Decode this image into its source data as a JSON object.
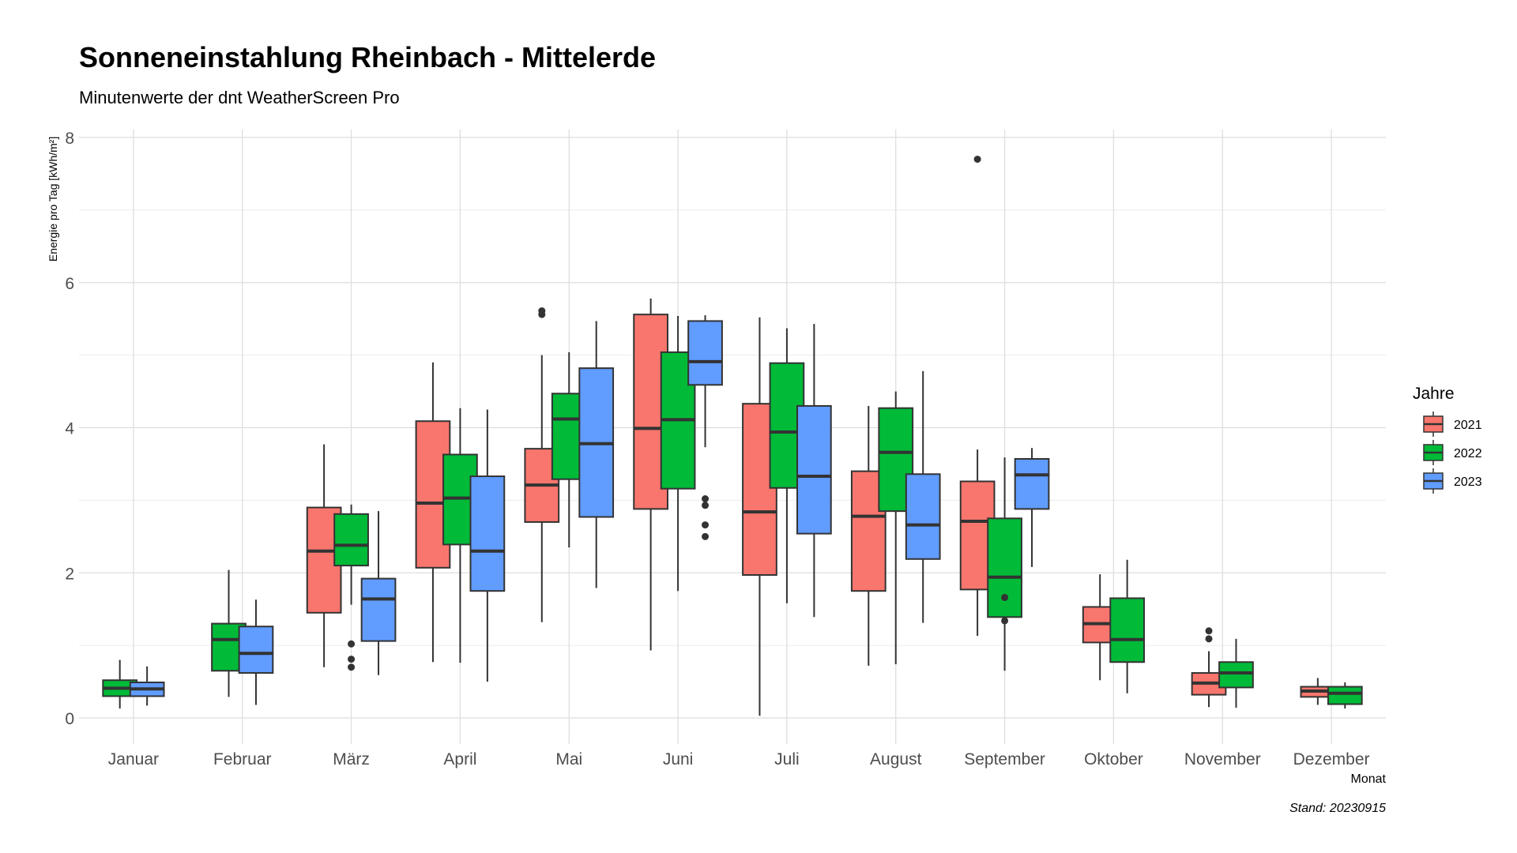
{
  "chart_data": {
    "type": "boxplot",
    "title": "Sonneneinstahlung Rheinbach - Mittelerde",
    "subtitle": "Minutenwerte der dnt WeatherScreen Pro",
    "xlabel": "Monat",
    "ylabel": "Energie pro Tag [kWh/m²]",
    "caption": "Stand: 20230915",
    "ylim": [
      -0.3,
      8.05
    ],
    "yticks": [
      0,
      2,
      4,
      6,
      8
    ],
    "grid": true,
    "legend": {
      "title": "Jahre",
      "position": "right"
    },
    "categories": [
      "Januar",
      "Februar",
      "März",
      "April",
      "Mai",
      "Juni",
      "Juli",
      "August",
      "September",
      "Oktober",
      "November",
      "Dezember"
    ],
    "series": [
      {
        "name": "2021",
        "color": "#F8766D",
        "boxes": [
          {
            "category": "März",
            "whisker_low": 0.7,
            "q1": 1.45,
            "median": 2.3,
            "q3": 2.9,
            "whisker_high": 3.77,
            "outliers": []
          },
          {
            "category": "April",
            "whisker_low": 0.77,
            "q1": 2.07,
            "median": 2.96,
            "q3": 4.09,
            "whisker_high": 4.9,
            "outliers": []
          },
          {
            "category": "Mai",
            "whisker_low": 1.32,
            "q1": 2.7,
            "median": 3.21,
            "q3": 3.71,
            "whisker_high": 5.0,
            "outliers": [
              5.56,
              5.61
            ]
          },
          {
            "category": "Juni",
            "whisker_low": 0.93,
            "q1": 2.88,
            "median": 3.99,
            "q3": 5.56,
            "whisker_high": 5.78,
            "outliers": []
          },
          {
            "category": "Juli",
            "whisker_low": 0.03,
            "q1": 1.97,
            "median": 2.84,
            "q3": 4.33,
            "whisker_high": 5.52,
            "outliers": []
          },
          {
            "category": "August",
            "whisker_low": 0.72,
            "q1": 1.75,
            "median": 2.78,
            "q3": 3.4,
            "whisker_high": 4.3,
            "outliers": []
          },
          {
            "category": "September",
            "whisker_low": 1.13,
            "q1": 1.77,
            "median": 2.71,
            "q3": 3.26,
            "whisker_high": 3.7,
            "outliers": [
              7.7
            ]
          },
          {
            "category": "Oktober",
            "whisker_low": 0.52,
            "q1": 1.04,
            "median": 1.3,
            "q3": 1.53,
            "whisker_high": 1.98,
            "outliers": []
          },
          {
            "category": "November",
            "whisker_low": 0.15,
            "q1": 0.32,
            "median": 0.48,
            "q3": 0.62,
            "whisker_high": 0.92,
            "outliers": [
              1.09,
              1.2
            ]
          },
          {
            "category": "Dezember",
            "whisker_low": 0.18,
            "q1": 0.29,
            "median": 0.37,
            "q3": 0.43,
            "whisker_high": 0.55,
            "outliers": []
          }
        ]
      },
      {
        "name": "2022",
        "color": "#00BA38",
        "boxes": [
          {
            "category": "Januar",
            "whisker_low": 0.13,
            "q1": 0.3,
            "median": 0.41,
            "q3": 0.52,
            "whisker_high": 0.8,
            "outliers": []
          },
          {
            "category": "Februar",
            "whisker_low": 0.29,
            "q1": 0.65,
            "median": 1.08,
            "q3": 1.3,
            "whisker_high": 2.04,
            "outliers": []
          },
          {
            "category": "März",
            "whisker_low": 1.56,
            "q1": 2.1,
            "median": 2.38,
            "q3": 2.81,
            "whisker_high": 2.94,
            "outliers": [
              0.7,
              0.81,
              1.02
            ]
          },
          {
            "category": "April",
            "whisker_low": 0.76,
            "q1": 2.39,
            "median": 3.03,
            "q3": 3.63,
            "whisker_high": 4.27,
            "outliers": []
          },
          {
            "category": "Mai",
            "whisker_low": 2.35,
            "q1": 3.29,
            "median": 4.12,
            "q3": 4.47,
            "whisker_high": 5.04,
            "outliers": []
          },
          {
            "category": "Juni",
            "whisker_low": 1.75,
            "q1": 3.16,
            "median": 4.11,
            "q3": 5.04,
            "whisker_high": 5.54,
            "outliers": []
          },
          {
            "category": "Juli",
            "whisker_low": 1.58,
            "q1": 3.17,
            "median": 3.94,
            "q3": 4.89,
            "whisker_high": 5.37,
            "outliers": []
          },
          {
            "category": "August",
            "whisker_low": 0.74,
            "q1": 2.85,
            "median": 3.66,
            "q3": 4.27,
            "whisker_high": 4.5,
            "outliers": []
          },
          {
            "category": "September",
            "whisker_low": 0.65,
            "q1": 1.39,
            "median": 1.94,
            "q3": 2.75,
            "whisker_high": 3.59,
            "outliers": [
              1.34,
              1.66
            ]
          },
          {
            "category": "Oktober",
            "whisker_low": 0.34,
            "q1": 0.77,
            "median": 1.08,
            "q3": 1.65,
            "whisker_high": 2.18,
            "outliers": []
          },
          {
            "category": "November",
            "whisker_low": 0.14,
            "q1": 0.42,
            "median": 0.62,
            "q3": 0.77,
            "whisker_high": 1.09,
            "outliers": []
          },
          {
            "category": "Dezember",
            "whisker_low": 0.13,
            "q1": 0.19,
            "median": 0.34,
            "q3": 0.43,
            "whisker_high": 0.49,
            "outliers": []
          }
        ]
      },
      {
        "name": "2023",
        "color": "#619CFF",
        "boxes": [
          {
            "category": "Januar",
            "whisker_low": 0.17,
            "q1": 0.3,
            "median": 0.4,
            "q3": 0.49,
            "whisker_high": 0.71,
            "outliers": []
          },
          {
            "category": "Februar",
            "whisker_low": 0.18,
            "q1": 0.62,
            "median": 0.89,
            "q3": 1.26,
            "whisker_high": 1.63,
            "outliers": []
          },
          {
            "category": "März",
            "whisker_low": 0.59,
            "q1": 1.06,
            "median": 1.64,
            "q3": 1.92,
            "whisker_high": 2.85,
            "outliers": []
          },
          {
            "category": "April",
            "whisker_low": 0.5,
            "q1": 1.75,
            "median": 2.3,
            "q3": 3.33,
            "whisker_high": 4.25,
            "outliers": []
          },
          {
            "category": "Mai",
            "whisker_low": 1.79,
            "q1": 2.77,
            "median": 3.78,
            "q3": 4.82,
            "whisker_high": 5.47,
            "outliers": []
          },
          {
            "category": "Juni",
            "whisker_low": 3.73,
            "q1": 4.59,
            "median": 4.91,
            "q3": 5.47,
            "whisker_high": 5.55,
            "outliers": [
              2.5,
              2.66,
              2.93,
              3.02
            ]
          },
          {
            "category": "Juli",
            "whisker_low": 1.39,
            "q1": 2.54,
            "median": 3.33,
            "q3": 4.3,
            "whisker_high": 5.43,
            "outliers": []
          },
          {
            "category": "August",
            "whisker_low": 1.31,
            "q1": 2.19,
            "median": 2.66,
            "q3": 3.36,
            "whisker_high": 4.78,
            "outliers": []
          },
          {
            "category": "September",
            "whisker_low": 2.08,
            "q1": 2.88,
            "median": 3.35,
            "q3": 3.57,
            "whisker_high": 3.72,
            "outliers": []
          }
        ]
      }
    ]
  }
}
